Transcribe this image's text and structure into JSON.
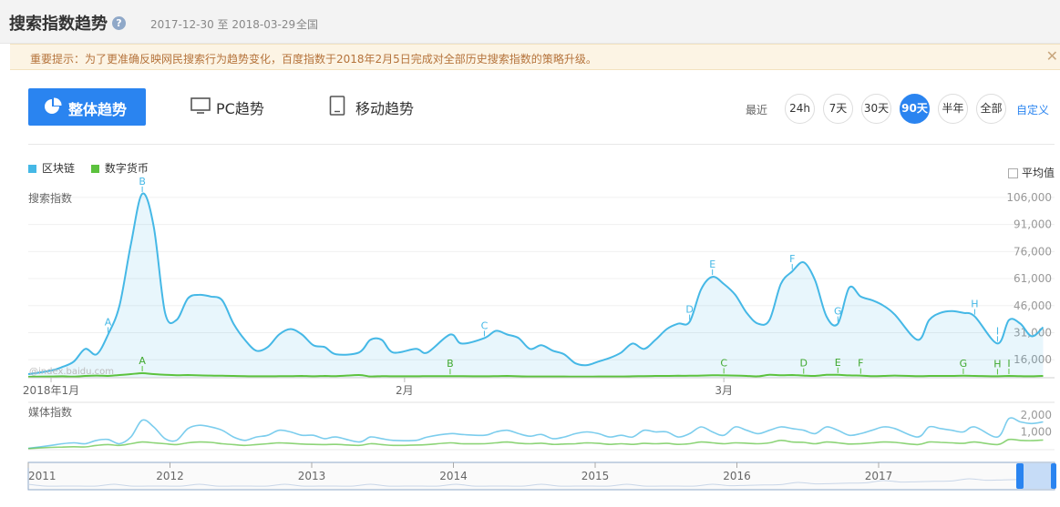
{
  "header": {
    "title": "搜索指数趋势",
    "help_icon": "question-circle-icon",
    "date_range": "2017-12-30 至 2018-03-29",
    "region": "全国"
  },
  "notice": {
    "text": "重要提示：为了更准确反映网民搜索行为趋势变化，百度指数于2018年2月5日完成对全部历史搜索指数的策略升级。",
    "close_icon": "close-icon"
  },
  "tabs": [
    {
      "label": "整体趋势",
      "icon": "pie-chart-icon",
      "active": true
    },
    {
      "label": "PC趋势",
      "icon": "monitor-icon",
      "active": false
    },
    {
      "label": "移动趋势",
      "icon": "tablet-icon",
      "active": false
    }
  ],
  "range": {
    "label": "最近",
    "options": [
      "24h",
      "7天",
      "30天",
      "90天",
      "半年",
      "全部"
    ],
    "selected": "90天",
    "custom_label": "自定义"
  },
  "legend": [
    {
      "name": "区块链",
      "color": "#45b8e6"
    },
    {
      "name": "数字货币",
      "color": "#5cc23e"
    }
  ],
  "avg_toggle": {
    "label": "平均值",
    "checked": false
  },
  "watermark": "@index.baidu.com",
  "colors": {
    "accent": "#2a84f0",
    "series_blockchain": "#45b8e6",
    "series_currency": "#5cc23e"
  },
  "chart_data": [
    {
      "type": "area",
      "title": "",
      "ylabel": "搜索指数",
      "xlabel": "",
      "x_tick_labels": [
        {
          "label": "2018年1月",
          "day": 2
        },
        {
          "label": "2月",
          "day": 33
        },
        {
          "label": "3月",
          "day": 61
        }
      ],
      "y_tick_labels": [
        "106,000",
        "91,000",
        "76,000",
        "61,000",
        "46,000",
        "31,000",
        "16,000"
      ],
      "ylim": [
        6000,
        112000
      ],
      "x": [
        "2017-12-30",
        "2018-01-01",
        "2018-01-02",
        "2018-01-03",
        "2018-01-04",
        "2018-01-05",
        "2018-01-06",
        "2018-01-07",
        "2018-01-08",
        "2018-01-09",
        "2018-01-10",
        "2018-01-11",
        "2018-01-12",
        "2018-01-13",
        "2018-01-14",
        "2018-01-15",
        "2018-01-16",
        "2018-01-17",
        "2018-01-18",
        "2018-01-19",
        "2018-01-20",
        "2018-01-21",
        "2018-01-22",
        "2018-01-23",
        "2018-01-24",
        "2018-01-25",
        "2018-01-26",
        "2018-01-28",
        "2018-01-29",
        "2018-01-30",
        "2018-01-31",
        "2018-02-02",
        "2018-02-03",
        "2018-02-05",
        "2018-02-06",
        "2018-02-08",
        "2018-02-09",
        "2018-02-10",
        "2018-02-11",
        "2018-02-12",
        "2018-02-13",
        "2018-02-14",
        "2018-02-15",
        "2018-02-16",
        "2018-02-17",
        "2018-02-18",
        "2018-02-19",
        "2018-02-20",
        "2018-02-21",
        "2018-02-22",
        "2018-02-23",
        "2018-02-24",
        "2018-02-25",
        "2018-02-26",
        "2018-02-27",
        "2018-02-28",
        "2018-03-01",
        "2018-03-02",
        "2018-03-03",
        "2018-03-04",
        "2018-03-05",
        "2018-03-06",
        "2018-03-07",
        "2018-03-08",
        "2018-03-09",
        "2018-03-10",
        "2018-03-11",
        "2018-03-12",
        "2018-03-13",
        "2018-03-14",
        "2018-03-15",
        "2018-03-16",
        "2018-03-18",
        "2018-03-19",
        "2018-03-20",
        "2018-03-21",
        "2018-03-22",
        "2018-03-23",
        "2018-03-25",
        "2018-03-26",
        "2018-03-27",
        "2018-03-28",
        "2018-03-29"
      ],
      "series": [
        {
          "name": "区块链",
          "color": "#45b8e6",
          "values": [
            8000,
            10000,
            12000,
            15000,
            22000,
            19000,
            30000,
            46000,
            80000,
            108000,
            90000,
            42000,
            38000,
            50000,
            52000,
            51000,
            49000,
            36000,
            27000,
            21000,
            23000,
            30000,
            33000,
            30000,
            24000,
            23000,
            19000,
            20000,
            27000,
            27000,
            20000,
            22000,
            20000,
            30000,
            25000,
            28000,
            32000,
            30000,
            28000,
            22000,
            24000,
            21000,
            19000,
            14000,
            13000,
            15000,
            17000,
            20000,
            25000,
            22000,
            27000,
            33000,
            36000,
            37000,
            55000,
            62000,
            58000,
            52000,
            42000,
            36000,
            38000,
            58000,
            65000,
            70000,
            60000,
            40000,
            36000,
            56000,
            51000,
            49000,
            46000,
            41000,
            27000,
            38000,
            42000,
            43000,
            42000,
            40000,
            25000,
            38000,
            36000,
            29000,
            34000
          ]
        },
        {
          "name": "数字货币",
          "color": "#5cc23e",
          "values": [
            6500,
            6700,
            6800,
            6600,
            7000,
            7200,
            7000,
            7500,
            8000,
            8500,
            8000,
            7600,
            7400,
            7500,
            7300,
            7200,
            7100,
            7000,
            6900,
            6800,
            6800,
            6900,
            6900,
            7000,
            6800,
            7000,
            6900,
            7500,
            6700,
            6900,
            6800,
            6800,
            6900,
            6900,
            6900,
            6800,
            6900,
            7000,
            6800,
            6700,
            6700,
            6700,
            6700,
            6600,
            6600,
            6700,
            6700,
            6700,
            6800,
            6900,
            7000,
            7000,
            7100,
            7100,
            7200,
            7400,
            7300,
            7200,
            7000,
            6800,
            7600,
            7400,
            7500,
            7200,
            7000,
            7600,
            7600,
            7300,
            7200,
            6900,
            7000,
            7200,
            6900,
            7000,
            7000,
            7000,
            7100,
            7000,
            6800,
            7000,
            6900,
            6800,
            7000
          ]
        }
      ],
      "annotations": [
        {
          "series": "区块链",
          "label": "A",
          "date": "2018-01-06"
        },
        {
          "series": "区块链",
          "label": "B",
          "date": "2018-01-09"
        },
        {
          "series": "区块链",
          "label": "C",
          "date": "2018-02-08"
        },
        {
          "series": "区块链",
          "label": "D",
          "date": "2018-02-26"
        },
        {
          "series": "区块链",
          "label": "E",
          "date": "2018-02-28"
        },
        {
          "series": "区块链",
          "label": "F",
          "date": "2018-03-07"
        },
        {
          "series": "区块链",
          "label": "G",
          "date": "2018-03-11"
        },
        {
          "series": "区块链",
          "label": "H",
          "date": "2018-03-23"
        },
        {
          "series": "区块链",
          "label": "I",
          "date": "2018-03-25"
        },
        {
          "series": "数字货币",
          "label": "A",
          "date": "2018-01-09"
        },
        {
          "series": "数字货币",
          "label": "B",
          "date": "2018-02-05"
        },
        {
          "series": "数字货币",
          "label": "C",
          "date": "2018-03-01"
        },
        {
          "series": "数字货币",
          "label": "D",
          "date": "2018-03-08"
        },
        {
          "series": "数字货币",
          "label": "E",
          "date": "2018-03-11"
        },
        {
          "series": "数字货币",
          "label": "F",
          "date": "2018-03-13"
        },
        {
          "series": "数字货币",
          "label": "G",
          "date": "2018-03-22"
        },
        {
          "series": "数字货币",
          "label": "H",
          "date": "2018-03-25"
        },
        {
          "series": "数字货币",
          "label": "I",
          "date": "2018-03-26"
        }
      ],
      "grid": true
    },
    {
      "type": "line",
      "title": "",
      "ylabel": "媒体指数",
      "y_tick_labels": [
        "2,000",
        "1,000"
      ],
      "ylim": [
        0,
        2600
      ],
      "x": [
        "2017-12-30",
        "2018-01-01",
        "2018-01-02",
        "2018-01-03",
        "2018-01-04",
        "2018-01-05",
        "2018-01-06",
        "2018-01-07",
        "2018-01-08",
        "2018-01-09",
        "2018-01-10",
        "2018-01-11",
        "2018-01-12",
        "2018-01-13",
        "2018-01-14",
        "2018-01-15",
        "2018-01-16",
        "2018-01-17",
        "2018-01-18",
        "2018-01-19",
        "2018-01-20",
        "2018-01-21",
        "2018-01-22",
        "2018-01-23",
        "2018-01-24",
        "2018-01-25",
        "2018-01-26",
        "2018-01-28",
        "2018-01-29",
        "2018-01-30",
        "2018-01-31",
        "2018-02-02",
        "2018-02-03",
        "2018-02-05",
        "2018-02-06",
        "2018-02-08",
        "2018-02-09",
        "2018-02-10",
        "2018-02-11",
        "2018-02-12",
        "2018-02-13",
        "2018-02-14",
        "2018-02-15",
        "2018-02-16",
        "2018-02-17",
        "2018-02-18",
        "2018-02-19",
        "2018-02-20",
        "2018-02-21",
        "2018-02-22",
        "2018-02-23",
        "2018-02-24",
        "2018-02-25",
        "2018-02-26",
        "2018-02-27",
        "2018-02-28",
        "2018-03-01",
        "2018-03-02",
        "2018-03-03",
        "2018-03-04",
        "2018-03-05",
        "2018-03-06",
        "2018-03-07",
        "2018-03-08",
        "2018-03-09",
        "2018-03-10",
        "2018-03-11",
        "2018-03-12",
        "2018-03-13",
        "2018-03-14",
        "2018-03-15",
        "2018-03-16",
        "2018-03-18",
        "2018-03-19",
        "2018-03-20",
        "2018-03-21",
        "2018-03-22",
        "2018-03-23",
        "2018-03-25",
        "2018-03-26",
        "2018-03-27",
        "2018-03-28",
        "2018-03-29"
      ],
      "series": [
        {
          "name": "区块链",
          "color": "#45b8e6",
          "values": [
            20,
            200,
            300,
            350,
            300,
            500,
            550,
            300,
            700,
            1700,
            1300,
            600,
            500,
            1200,
            1400,
            1300,
            1100,
            700,
            500,
            700,
            800,
            1100,
            1000,
            800,
            800,
            600,
            700,
            400,
            700,
            600,
            500,
            500,
            700,
            900,
            850,
            800,
            1000,
            1100,
            900,
            750,
            850,
            600,
            700,
            900,
            1000,
            900,
            700,
            800,
            700,
            1100,
            1000,
            1000,
            700,
            900,
            1300,
            1000,
            800,
            1300,
            1100,
            900,
            1100,
            1300,
            1200,
            1100,
            900,
            1300,
            1100,
            800,
            900,
            1100,
            1300,
            1200,
            700,
            1300,
            1200,
            1100,
            1000,
            1300,
            700,
            1800,
            1600,
            1500,
            1600
          ]
        },
        {
          "name": "数字货币",
          "color": "#5cc23e",
          "values": [
            10,
            80,
            100,
            120,
            110,
            200,
            250,
            200,
            300,
            400,
            350,
            300,
            250,
            350,
            400,
            380,
            300,
            250,
            200,
            250,
            300,
            350,
            320,
            280,
            260,
            250,
            260,
            200,
            300,
            250,
            200,
            220,
            250,
            350,
            300,
            300,
            350,
            400,
            330,
            300,
            330,
            260,
            280,
            300,
            350,
            320,
            260,
            300,
            260,
            320,
            300,
            320,
            260,
            300,
            400,
            350,
            300,
            350,
            330,
            300,
            350,
            500,
            400,
            380,
            300,
            400,
            350,
            280,
            300,
            350,
            400,
            380,
            250,
            400,
            380,
            350,
            320,
            400,
            250,
            550,
            500,
            480,
            520
          ]
        }
      ]
    }
  ],
  "timeline": {
    "years": [
      "2011",
      "2012",
      "2013",
      "2014",
      "2015",
      "2016",
      "2017"
    ],
    "selected_window": "2017-12-30 至 2018-03-29"
  }
}
